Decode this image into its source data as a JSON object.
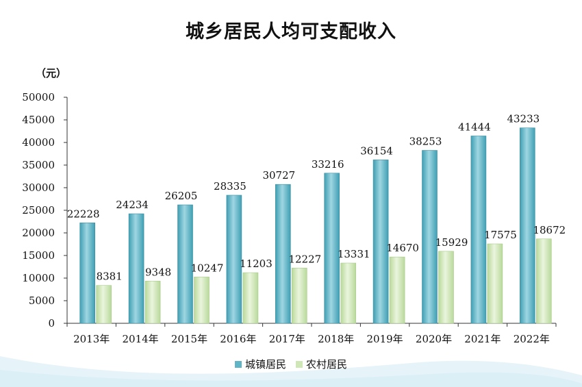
{
  "chart_data": {
    "type": "bar",
    "title": "城乡居民人均可支配收入",
    "unit_label": "（元）",
    "categories": [
      "2013年",
      "2014年",
      "2015年",
      "2016年",
      "2017年",
      "2018年",
      "2019年",
      "2020年",
      "2021年",
      "2022年"
    ],
    "series": [
      {
        "name": "城镇居民",
        "values": [
          22228,
          24234,
          26205,
          28335,
          30727,
          33216,
          36154,
          38253,
          41444,
          43233
        ],
        "color": "#5fb4c6"
      },
      {
        "name": "农村居民",
        "values": [
          8381,
          9348,
          10247,
          11203,
          12227,
          13331,
          14670,
          15929,
          17575,
          18672
        ],
        "color": "#cfe6b6"
      }
    ],
    "ylim": [
      0,
      50000
    ],
    "yticks": [
      0,
      5000,
      10000,
      15000,
      20000,
      25000,
      30000,
      35000,
      40000,
      45000,
      50000
    ],
    "grid": false,
    "legend_position": "bottom"
  }
}
